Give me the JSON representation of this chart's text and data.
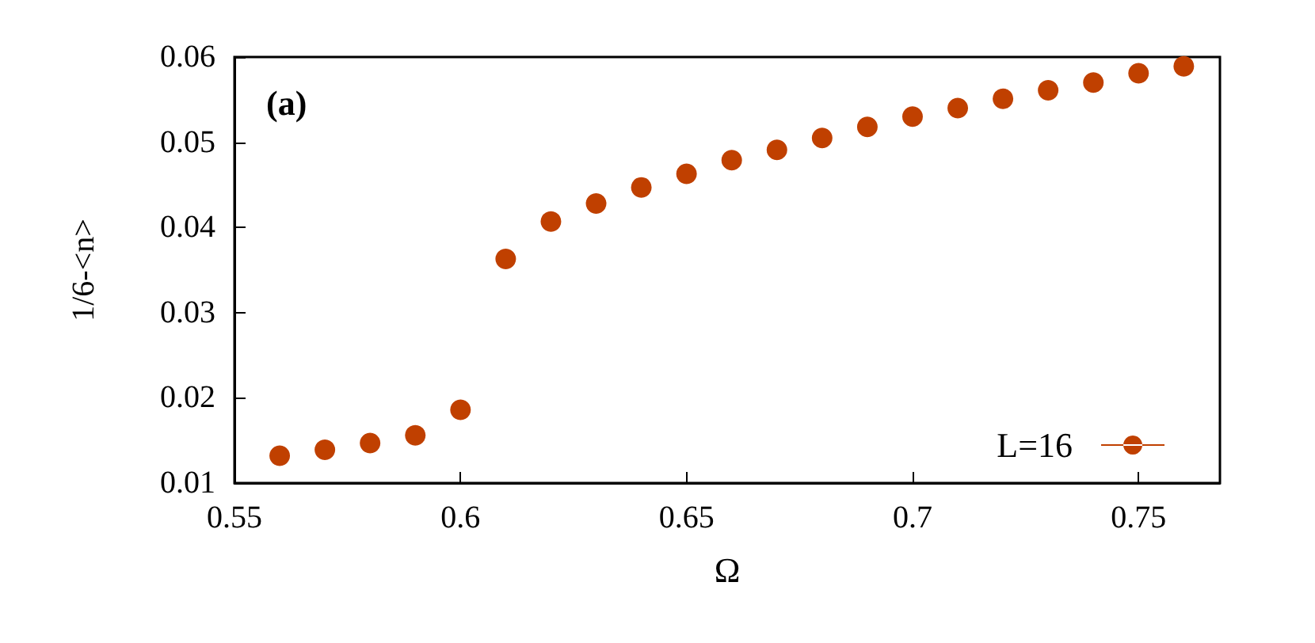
{
  "chart_data": {
    "type": "scatter",
    "xlabel": "Ω",
    "ylabel": "1/6-<n>",
    "annotations": [
      "(a)"
    ],
    "x": [
      0.56,
      0.57,
      0.58,
      0.59,
      0.6,
      0.61,
      0.62,
      0.63,
      0.64,
      0.65,
      0.66,
      0.67,
      0.68,
      0.69,
      0.7,
      0.71,
      0.72,
      0.73,
      0.74,
      0.75,
      0.76
    ],
    "series": [
      {
        "name": "L=16",
        "color": "#c04000",
        "values": [
          0.0132,
          0.0139,
          0.0147,
          0.0156,
          0.0186,
          0.0363,
          0.0407,
          0.0428,
          0.0447,
          0.0463,
          0.0479,
          0.0491,
          0.0505,
          0.0518,
          0.053,
          0.054,
          0.0551,
          0.0561,
          0.057,
          0.0581,
          0.0589
        ]
      }
    ],
    "xlim": [
      0.55,
      0.768
    ],
    "xticks": [
      0.55,
      0.6,
      0.65,
      0.7,
      0.75
    ],
    "ylim": [
      0.01,
      0.06
    ],
    "yticks": [
      0.01,
      0.02,
      0.03,
      0.04,
      0.05,
      0.06
    ],
    "legend": "bottom right",
    "marker": "circle",
    "grid": false
  }
}
